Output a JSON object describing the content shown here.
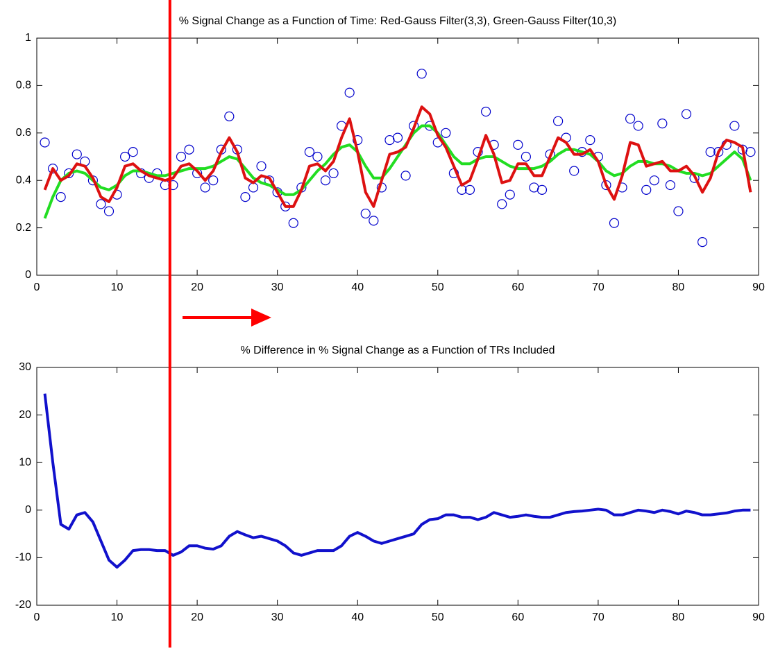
{
  "chart_data": [
    {
      "type": "line",
      "title": "% Signal Change as a Function of Time: Red-Gauss Filter(3,3), Green-Gauss Filter(10,3)",
      "x": [
        1,
        2,
        3,
        4,
        5,
        6,
        7,
        8,
        9,
        10,
        11,
        12,
        13,
        14,
        15,
        16,
        17,
        18,
        19,
        20,
        21,
        22,
        23,
        24,
        25,
        26,
        27,
        28,
        29,
        30,
        31,
        32,
        33,
        34,
        35,
        36,
        37,
        38,
        39,
        40,
        41,
        42,
        43,
        44,
        45,
        46,
        47,
        48,
        49,
        50,
        51,
        52,
        53,
        54,
        55,
        56,
        57,
        58,
        59,
        60,
        61,
        62,
        63,
        64,
        65,
        66,
        67,
        68,
        69,
        70,
        71,
        72,
        73,
        74,
        75,
        76,
        77,
        78,
        79,
        80,
        81,
        82,
        83,
        84,
        85,
        86,
        87,
        88,
        89
      ],
      "series": [
        {
          "color": "#0000cc",
          "style": "markers",
          "values": [
            0.56,
            0.45,
            0.33,
            0.43,
            0.51,
            0.48,
            0.4,
            0.3,
            0.27,
            0.34,
            0.5,
            0.52,
            0.43,
            0.41,
            0.43,
            0.38,
            0.38,
            0.5,
            0.53,
            0.43,
            0.37,
            0.4,
            0.53,
            0.67,
            0.53,
            0.33,
            0.37,
            0.46,
            0.4,
            0.35,
            0.29,
            0.22,
            0.37,
            0.52,
            0.5,
            0.4,
            0.43,
            0.63,
            0.77,
            0.57,
            0.26,
            0.23,
            0.37,
            0.57,
            0.58,
            0.42,
            0.63,
            0.85,
            0.63,
            0.56,
            0.6,
            0.43,
            0.36,
            0.36,
            0.52,
            0.69,
            0.55,
            0.3,
            0.34,
            0.55,
            0.5,
            0.37,
            0.36,
            0.51,
            0.65,
            0.58,
            0.44,
            0.52,
            0.57,
            0.5,
            0.38,
            0.22,
            0.37,
            0.66,
            0.63,
            0.36,
            0.4,
            0.64,
            0.38,
            0.27,
            0.68,
            0.41,
            0.14,
            0.52,
            0.52,
            0.55,
            0.63,
            0.53,
            0.52
          ]
        },
        {
          "color": "#22dd22",
          "style": "line",
          "values": [
            0.24,
            0.33,
            0.4,
            0.43,
            0.44,
            0.43,
            0.4,
            0.37,
            0.36,
            0.38,
            0.42,
            0.44,
            0.44,
            0.43,
            0.42,
            0.42,
            0.43,
            0.44,
            0.45,
            0.45,
            0.45,
            0.46,
            0.48,
            0.5,
            0.49,
            0.45,
            0.41,
            0.39,
            0.38,
            0.36,
            0.34,
            0.34,
            0.36,
            0.4,
            0.44,
            0.47,
            0.51,
            0.54,
            0.55,
            0.52,
            0.46,
            0.41,
            0.41,
            0.45,
            0.5,
            0.55,
            0.6,
            0.63,
            0.63,
            0.6,
            0.55,
            0.5,
            0.47,
            0.47,
            0.49,
            0.5,
            0.5,
            0.48,
            0.46,
            0.45,
            0.45,
            0.45,
            0.46,
            0.48,
            0.51,
            0.53,
            0.53,
            0.52,
            0.51,
            0.48,
            0.44,
            0.42,
            0.43,
            0.46,
            0.48,
            0.48,
            0.47,
            0.47,
            0.46,
            0.44,
            0.43,
            0.43,
            0.42,
            0.43,
            0.46,
            0.49,
            0.52,
            0.49,
            0.4
          ]
        },
        {
          "color": "#dd1111",
          "style": "line",
          "values": [
            0.36,
            0.45,
            0.4,
            0.42,
            0.47,
            0.46,
            0.41,
            0.33,
            0.31,
            0.37,
            0.46,
            0.47,
            0.44,
            0.42,
            0.41,
            0.4,
            0.41,
            0.46,
            0.47,
            0.44,
            0.4,
            0.44,
            0.52,
            0.58,
            0.52,
            0.41,
            0.39,
            0.42,
            0.41,
            0.35,
            0.29,
            0.29,
            0.36,
            0.46,
            0.47,
            0.44,
            0.48,
            0.58,
            0.66,
            0.52,
            0.35,
            0.29,
            0.4,
            0.51,
            0.52,
            0.54,
            0.62,
            0.71,
            0.68,
            0.59,
            0.54,
            0.46,
            0.38,
            0.4,
            0.49,
            0.59,
            0.51,
            0.39,
            0.4,
            0.47,
            0.47,
            0.42,
            0.42,
            0.5,
            0.58,
            0.56,
            0.51,
            0.51,
            0.53,
            0.48,
            0.38,
            0.32,
            0.42,
            0.56,
            0.55,
            0.46,
            0.47,
            0.48,
            0.44,
            0.44,
            0.46,
            0.42,
            0.35,
            0.41,
            0.52,
            0.57,
            0.56,
            0.54,
            0.35
          ]
        }
      ],
      "xlim": [
        0,
        90
      ],
      "xticks": [
        0,
        10,
        20,
        30,
        40,
        50,
        60,
        70,
        80,
        90
      ],
      "ylim": [
        0,
        1
      ],
      "yticks": [
        0,
        0.2,
        0.4,
        0.6,
        0.8,
        1
      ]
    },
    {
      "type": "line",
      "title": "% Difference in % Signal Change as a Function of TRs Included",
      "x": [
        1,
        2,
        3,
        4,
        5,
        6,
        7,
        8,
        9,
        10,
        11,
        12,
        13,
        14,
        15,
        16,
        17,
        18,
        19,
        20,
        21,
        22,
        23,
        24,
        25,
        26,
        27,
        28,
        29,
        30,
        31,
        32,
        33,
        34,
        35,
        36,
        37,
        38,
        39,
        40,
        41,
        42,
        43,
        44,
        45,
        46,
        47,
        48,
        49,
        50,
        51,
        52,
        53,
        54,
        55,
        56,
        57,
        58,
        59,
        60,
        61,
        62,
        63,
        64,
        65,
        66,
        67,
        68,
        69,
        70,
        71,
        72,
        73,
        74,
        75,
        76,
        77,
        78,
        79,
        80,
        81,
        82,
        83,
        84,
        85,
        86,
        87,
        88,
        89
      ],
      "series": [
        {
          "color": "#1111cc",
          "style": "line",
          "values": [
            24.5,
            10,
            -3,
            -4,
            -1,
            -0.5,
            -2.5,
            -6.5,
            -10.5,
            -12,
            -10.5,
            -8.5,
            -8.3,
            -8.3,
            -8.5,
            -8.5,
            -9.5,
            -8.8,
            -7.5,
            -7.5,
            -8,
            -8.2,
            -7.5,
            -5.5,
            -4.5,
            -5.2,
            -5.8,
            -5.5,
            -6,
            -6.5,
            -7.5,
            -9,
            -9.5,
            -9,
            -8.5,
            -8.5,
            -8.5,
            -7.5,
            -5.5,
            -4.7,
            -5.5,
            -6.5,
            -7,
            -6.5,
            -6,
            -5.5,
            -5,
            -3,
            -2,
            -1.8,
            -1,
            -1,
            -1.5,
            -1.5,
            -2,
            -1.5,
            -0.5,
            -1,
            -1.5,
            -1.3,
            -1,
            -1.3,
            -1.5,
            -1.5,
            -1,
            -0.5,
            -0.3,
            -0.2,
            0,
            0.2,
            0,
            -1,
            -1,
            -0.5,
            0,
            -0.2,
            -0.5,
            0,
            -0.3,
            -0.8,
            -0.2,
            -0.5,
            -1,
            -1,
            -0.8,
            -0.6,
            -0.2,
            0,
            0
          ]
        }
      ],
      "xlim": [
        0,
        90
      ],
      "xticks": [
        0,
        10,
        20,
        30,
        40,
        50,
        60,
        70,
        80,
        90
      ],
      "ylim": [
        -20,
        30
      ],
      "yticks": [
        -20,
        -10,
        0,
        10,
        20,
        30
      ]
    }
  ],
  "marker_line": {
    "x": 16.6,
    "color": "#ff0000"
  }
}
